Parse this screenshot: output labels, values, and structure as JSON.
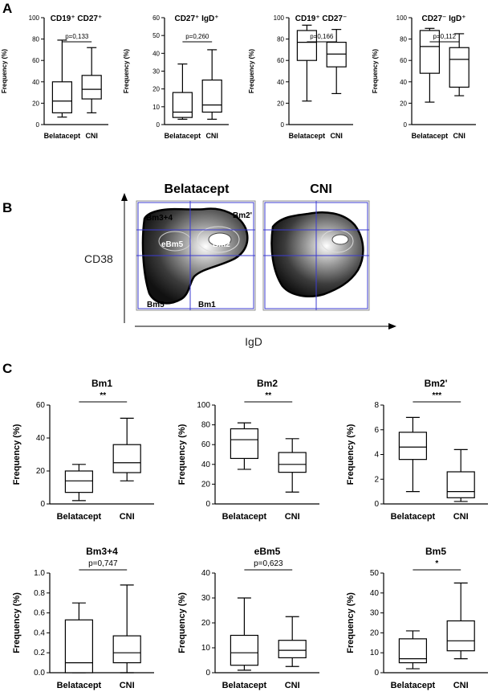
{
  "panel_labels": {
    "a": "A",
    "b": "B",
    "c": "C"
  },
  "flow": {
    "title_left": "Belatacept",
    "title_right": "CNI",
    "y_label": "CD38",
    "x_label": "IgD",
    "gates": {
      "bm34": "Bm3+4",
      "bm2p": "Bm2'",
      "ebm5": "eBm5",
      "bm2": "Bm2",
      "bm5": "Bm5",
      "bm1": "Bm1"
    }
  },
  "chart_data": [
    {
      "type": "box",
      "panel": "A",
      "title": "CD19⁺ CD27⁺",
      "pvalue": "p=0,133",
      "ylabel": "Frequency (%)",
      "ylim": [
        0,
        100
      ],
      "yticks": [
        "0",
        "20",
        "40",
        "60",
        "80",
        "100"
      ],
      "categories": [
        "Belatacept",
        "CNI"
      ],
      "boxes": [
        {
          "min": 7,
          "q1": 11,
          "median": 22,
          "q3": 40,
          "max": 79
        },
        {
          "min": 11,
          "q1": 24,
          "median": 33,
          "q3": 46,
          "max": 72
        }
      ]
    },
    {
      "type": "box",
      "panel": "A",
      "title": "CD27⁺ IgD⁺",
      "pvalue": "p=0,260",
      "ylabel": "Frequency (%)",
      "ylim": [
        0,
        60
      ],
      "yticks": [
        "0",
        "10",
        "20",
        "30",
        "40",
        "50",
        "60"
      ],
      "categories": [
        "Belatacept",
        "CNI"
      ],
      "boxes": [
        {
          "min": 3,
          "q1": 4,
          "median": 7,
          "q3": 18,
          "max": 34
        },
        {
          "min": 3,
          "q1": 7,
          "median": 11,
          "q3": 25,
          "max": 42
        }
      ]
    },
    {
      "type": "box",
      "panel": "A",
      "title": "CD19⁺ CD27⁻",
      "pvalue": "p=0,166",
      "ylabel": "Frequency (%)",
      "ylim": [
        0,
        100
      ],
      "yticks": [
        "0",
        "20",
        "40",
        "60",
        "80",
        "100"
      ],
      "categories": [
        "Belatacept",
        "CNI"
      ],
      "boxes": [
        {
          "min": 22,
          "q1": 60,
          "median": 77,
          "q3": 88,
          "max": 93
        },
        {
          "min": 29,
          "q1": 54,
          "median": 66,
          "q3": 77,
          "max": 89
        }
      ]
    },
    {
      "type": "box",
      "panel": "A",
      "title": "CD27⁻ IgD⁺",
      "pvalue": "p=0,112",
      "ylabel": "Frequency (%)",
      "ylim": [
        0,
        100
      ],
      "yticks": [
        "0",
        "20",
        "40",
        "60",
        "80",
        "100"
      ],
      "categories": [
        "Belatacept",
        "CNI"
      ],
      "boxes": [
        {
          "min": 21,
          "q1": 48,
          "median": 73,
          "q3": 88,
          "max": 90
        },
        {
          "min": 27,
          "q1": 35,
          "median": 61,
          "q3": 72,
          "max": 85
        }
      ]
    },
    {
      "type": "box",
      "panel": "C",
      "title": "Bm1",
      "pvalue": "**",
      "ylabel": "Frequency (%)",
      "ylim": [
        0,
        60
      ],
      "yticks": [
        "0",
        "20",
        "40",
        "60"
      ],
      "categories": [
        "Belatacept",
        "CNI"
      ],
      "boxes": [
        {
          "min": 2,
          "q1": 7,
          "median": 14,
          "q3": 20,
          "max": 24
        },
        {
          "min": 14,
          "q1": 19,
          "median": 25,
          "q3": 36,
          "max": 52
        }
      ]
    },
    {
      "type": "box",
      "panel": "C",
      "title": "Bm2",
      "pvalue": "**",
      "ylabel": "Frequency (%)",
      "ylim": [
        0,
        100
      ],
      "yticks": [
        "0",
        "20",
        "40",
        "60",
        "80",
        "100"
      ],
      "categories": [
        "Belatacept",
        "CNI"
      ],
      "boxes": [
        {
          "min": 35,
          "q1": 46,
          "median": 65,
          "q3": 76,
          "max": 82
        },
        {
          "min": 12,
          "q1": 32,
          "median": 40,
          "q3": 52,
          "max": 66
        }
      ]
    },
    {
      "type": "box",
      "panel": "C",
      "title": "Bm2'",
      "pvalue": "***",
      "ylabel": "Frequency (%)",
      "ylim": [
        0,
        8
      ],
      "yticks": [
        "0",
        "2",
        "4",
        "6",
        "8"
      ],
      "categories": [
        "Belatacept",
        "CNI"
      ],
      "boxes": [
        {
          "min": 1,
          "q1": 3.6,
          "median": 4.6,
          "q3": 5.8,
          "max": 7
        },
        {
          "min": 0.2,
          "q1": 0.5,
          "median": 1,
          "q3": 2.6,
          "max": 4.4
        }
      ]
    },
    {
      "type": "box",
      "panel": "C",
      "title": "Bm3+4",
      "pvalue": "p=0,747",
      "ylabel": "Frequency (%)",
      "ylim": [
        0,
        1
      ],
      "yticks": [
        "0.0",
        "0.2",
        "0.4",
        "0.6",
        "0.8",
        "1.0"
      ],
      "categories": [
        "Belatacept",
        "CNI"
      ],
      "boxes": [
        {
          "min": 0,
          "q1": 0,
          "median": 0.1,
          "q3": 0.53,
          "max": 0.7
        },
        {
          "min": 0,
          "q1": 0.1,
          "median": 0.2,
          "q3": 0.37,
          "max": 0.88
        }
      ]
    },
    {
      "type": "box",
      "panel": "C",
      "title": "eBm5",
      "pvalue": "p=0,623",
      "ylabel": "Frequency (%)",
      "ylim": [
        0,
        40
      ],
      "yticks": [
        "0",
        "10",
        "20",
        "30",
        "40"
      ],
      "categories": [
        "Belatacept",
        "CNI"
      ],
      "boxes": [
        {
          "min": 1,
          "q1": 3,
          "median": 8,
          "q3": 15,
          "max": 30
        },
        {
          "min": 2.5,
          "q1": 6,
          "median": 9,
          "q3": 13,
          "max": 22.5
        }
      ]
    },
    {
      "type": "box",
      "panel": "C",
      "title": "Bm5",
      "pvalue": "*",
      "ylabel": "Frequency (%)",
      "ylim": [
        0,
        50
      ],
      "yticks": [
        "0",
        "10",
        "20",
        "30",
        "40",
        "50"
      ],
      "categories": [
        "Belatacept",
        "CNI"
      ],
      "boxes": [
        {
          "min": 2,
          "q1": 5,
          "median": 7,
          "q3": 17,
          "max": 21
        },
        {
          "min": 7,
          "q1": 11,
          "median": 16,
          "q3": 26,
          "max": 45
        }
      ]
    }
  ]
}
